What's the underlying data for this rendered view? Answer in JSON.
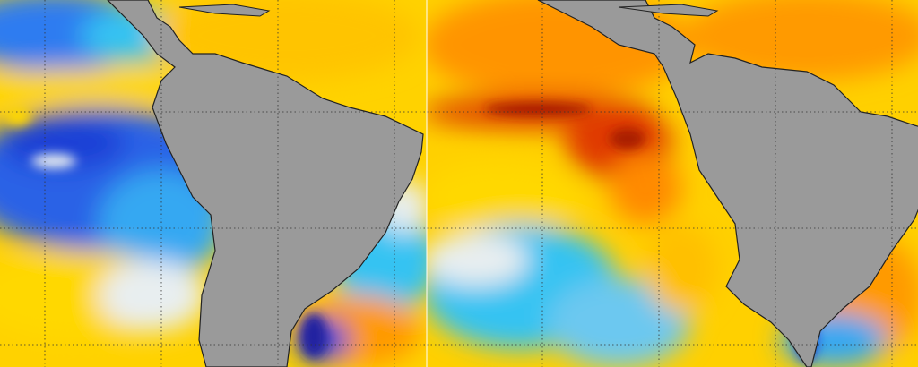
{
  "colors": {
    "land": "#9a9a9a",
    "coast": "#222222",
    "grid": "#333333",
    "deep_blue": "#1a3fd6",
    "blue": "#2f7cf0",
    "cyan": "#35c3f2",
    "white": "#e8eef0",
    "yellow": "#ffd800",
    "gold": "#ffb400",
    "orange": "#ff8a00",
    "red": "#e03a00",
    "dark_red": "#a81e00"
  },
  "panels": [
    {
      "name": "left-map",
      "description_icon": "sst-anomaly-map"
    },
    {
      "name": "right-map",
      "description_icon": "sst-anomaly-map"
    }
  ]
}
